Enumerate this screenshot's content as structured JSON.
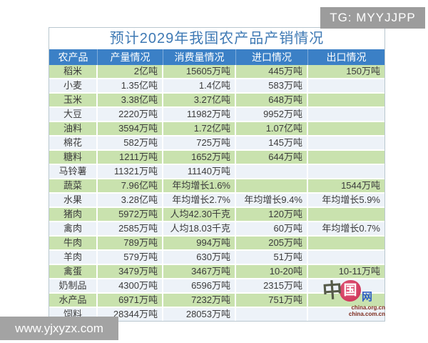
{
  "title": "预计2029年我国农产品产销情况",
  "table": {
    "headers": [
      "农产品",
      "产量情况",
      "消费量情况",
      "进口情况",
      "出口情况"
    ],
    "rows": [
      {
        "cells": [
          "稻米",
          "2亿吨",
          "15605万吨",
          "445万吨",
          "150万吨"
        ]
      },
      {
        "cells": [
          "小麦",
          "1.35亿吨",
          "1.4亿吨",
          "583万吨",
          ""
        ]
      },
      {
        "cells": [
          "玉米",
          "3.38亿吨",
          "3.27亿吨",
          "648万吨",
          ""
        ]
      },
      {
        "cells": [
          "大豆",
          "2220万吨",
          "11982万吨",
          "9952万吨",
          ""
        ]
      },
      {
        "cells": [
          "油料",
          "3594万吨",
          "1.72亿吨",
          "1.07亿吨",
          ""
        ]
      },
      {
        "cells": [
          "棉花",
          "582万吨",
          "725万吨",
          "145万吨",
          ""
        ]
      },
      {
        "cells": [
          "糖料",
          "1211万吨",
          "1652万吨",
          "644万吨",
          ""
        ]
      },
      {
        "cells": [
          "马铃薯",
          "11321万吨",
          "11140万吨",
          "",
          ""
        ]
      },
      {
        "cells": [
          "蔬菜",
          "7.96亿吨",
          "年均增长1.6%",
          "",
          "1544万吨"
        ]
      },
      {
        "cells": [
          "水果",
          "3.28亿吨",
          "年均增长2.7%",
          "年均增长9.4%",
          "年均增长5.9%"
        ]
      },
      {
        "cells": [
          "猪肉",
          "5972万吨",
          "人均42.30千克",
          "120万吨",
          ""
        ]
      },
      {
        "cells": [
          "禽肉",
          "2585万吨",
          "人均18.03千克",
          "60万吨",
          "年均增长0.7%"
        ]
      },
      {
        "cells": [
          "牛肉",
          "789万吨",
          "994万吨",
          "205万吨",
          ""
        ]
      },
      {
        "cells": [
          "羊肉",
          "579万吨",
          "630万吨",
          "51万吨",
          ""
        ]
      },
      {
        "cells": [
          "禽蛋",
          "3479万吨",
          "3467万吨",
          "10-20吨",
          "10-11万吨"
        ]
      },
      {
        "cells": [
          "奶制品",
          "4300万吨",
          "6596万吨",
          "2315万吨",
          ""
        ]
      },
      {
        "cells": [
          "水产品",
          "6971万吨",
          "7232万吨",
          "751万吨",
          ""
        ]
      },
      {
        "cells": [
          "饲料",
          "28344万吨",
          "28053万吨",
          "",
          ""
        ]
      }
    ]
  },
  "chart_data": {
    "type": "table",
    "title": "预计2029年我国农产品产销情况",
    "columns": [
      "农产品",
      "产量情况",
      "消费量情况",
      "进口情况",
      "出口情况"
    ],
    "rows": [
      [
        "稻米",
        "2亿吨",
        "15605万吨",
        "445万吨",
        "150万吨"
      ],
      [
        "小麦",
        "1.35亿吨",
        "1.4亿吨",
        "583万吨",
        ""
      ],
      [
        "玉米",
        "3.38亿吨",
        "3.27亿吨",
        "648万吨",
        ""
      ],
      [
        "大豆",
        "2220万吨",
        "11982万吨",
        "9952万吨",
        ""
      ],
      [
        "油料",
        "3594万吨",
        "1.72亿吨",
        "1.07亿吨",
        ""
      ],
      [
        "棉花",
        "582万吨",
        "725万吨",
        "145万吨",
        ""
      ],
      [
        "糖料",
        "1211万吨",
        "1652万吨",
        "644万吨",
        ""
      ],
      [
        "马铃薯",
        "11321万吨",
        "11140万吨",
        "",
        ""
      ],
      [
        "蔬菜",
        "7.96亿吨",
        "年均增长1.6%",
        "",
        "1544万吨"
      ],
      [
        "水果",
        "3.28亿吨",
        "年均增长2.7%",
        "年均增长9.4%",
        "年均增长5.9%"
      ],
      [
        "猪肉",
        "5972万吨",
        "人均42.30千克",
        "120万吨",
        ""
      ],
      [
        "禽肉",
        "2585万吨",
        "人均18.03千克",
        "60万吨",
        "年均增长0.7%"
      ],
      [
        "牛肉",
        "789万吨",
        "994万吨",
        "205万吨",
        ""
      ],
      [
        "羊肉",
        "579万吨",
        "630万吨",
        "51万吨",
        ""
      ],
      [
        "禽蛋",
        "3479万吨",
        "3467万吨",
        "10-20吨",
        "10-11万吨"
      ],
      [
        "奶制品",
        "4300万吨",
        "6596万吨",
        "2315万吨",
        ""
      ],
      [
        "水产品",
        "6971万吨",
        "7232万吨",
        "751万吨",
        ""
      ],
      [
        "饲料",
        "28344万吨",
        "28053万吨",
        "",
        ""
      ]
    ],
    "layout": {
      "header_bg": "#3b80c6",
      "row_alt_green": "#c9e2ae",
      "row_alt_light": "#edf2f8",
      "title_color": "#3e79b4"
    }
  },
  "watermarks": {
    "tg": "TG: MYYJJPP",
    "site": "www.yjxyzx.com"
  },
  "logo": {
    "char_zhong": "中",
    "char_guo": "国",
    "char_wang": "网",
    "url1": "china.org.cn",
    "url2": "china.com.cn"
  },
  "colors": {
    "header_blue": "#3b80c6",
    "row_green": "#c9e2ae",
    "row_light": "#edf2f8",
    "title_blue": "#3e79b4",
    "watermark_gray": "#9c9c9c",
    "cell_text": "#3c3c3c"
  }
}
